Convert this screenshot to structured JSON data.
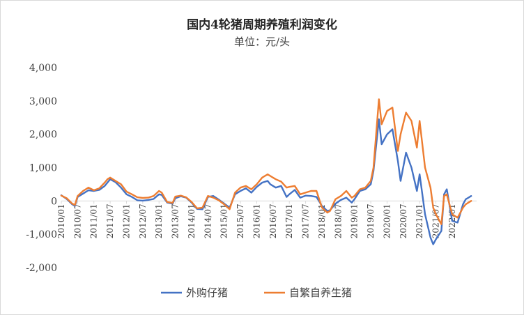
{
  "chart_data": {
    "type": "line",
    "title": "国内4轮猪周期养殖利润变化",
    "subtitle": "单位：元/头",
    "xlabel": "",
    "ylabel": "",
    "ylim": [
      -2000,
      4000
    ],
    "yticks": [
      4000,
      3000,
      2000,
      1000,
      0,
      -1000,
      -2000
    ],
    "ytick_labels": [
      "4,000",
      "3,000",
      "2,000",
      "1,000",
      "0",
      "-1,000",
      "-2,000"
    ],
    "xlim": [
      "2010-01",
      "2022-10"
    ],
    "xtick_labels": [
      "2010/01",
      "2010/07",
      "2011/01",
      "2011/07",
      "2012/01",
      "2012/07",
      "2013/01",
      "2013/07",
      "2014/01",
      "2014/07",
      "2015/01",
      "2015/07",
      "2016/01",
      "2016/07",
      "2017/01",
      "2017/07",
      "2018/01",
      "2018/07",
      "2019/01",
      "2019/07",
      "2020/01",
      "2020/07",
      "2021/01",
      "2021/07",
      "2022/01"
    ],
    "grid": false,
    "legend_position": "bottom",
    "series": [
      {
        "name": "外购仔猪",
        "color": "#4472C4",
        "points": [
          [
            "2010-01",
            170
          ],
          [
            "2010-03",
            60
          ],
          [
            "2010-05",
            -100
          ],
          [
            "2010-06",
            -150
          ],
          [
            "2010-07",
            120
          ],
          [
            "2010-09",
            220
          ],
          [
            "2010-11",
            320
          ],
          [
            "2011-01",
            300
          ],
          [
            "2011-03",
            330
          ],
          [
            "2011-05",
            450
          ],
          [
            "2011-06",
            550
          ],
          [
            "2011-07",
            650
          ],
          [
            "2011-09",
            560
          ],
          [
            "2011-11",
            400
          ],
          [
            "2012-01",
            200
          ],
          [
            "2012-03",
            120
          ],
          [
            "2012-05",
            20
          ],
          [
            "2012-07",
            10
          ],
          [
            "2012-09",
            30
          ],
          [
            "2012-11",
            60
          ],
          [
            "2013-01",
            200
          ],
          [
            "2013-02",
            180
          ],
          [
            "2013-04",
            -50
          ],
          [
            "2013-06",
            -80
          ],
          [
            "2013-07",
            80
          ],
          [
            "2013-09",
            140
          ],
          [
            "2013-11",
            100
          ],
          [
            "2014-01",
            -50
          ],
          [
            "2014-03",
            -240
          ],
          [
            "2014-05",
            -250
          ],
          [
            "2014-07",
            120
          ],
          [
            "2014-09",
            150
          ],
          [
            "2014-11",
            40
          ],
          [
            "2015-01",
            -80
          ],
          [
            "2015-03",
            -200
          ],
          [
            "2015-05",
            200
          ],
          [
            "2015-07",
            300
          ],
          [
            "2015-09",
            380
          ],
          [
            "2015-11",
            250
          ],
          [
            "2016-01",
            420
          ],
          [
            "2016-03",
            550
          ],
          [
            "2016-05",
            600
          ],
          [
            "2016-06",
            500
          ],
          [
            "2016-08",
            400
          ],
          [
            "2016-10",
            450
          ],
          [
            "2016-12",
            120
          ],
          [
            "2017-01",
            200
          ],
          [
            "2017-03",
            330
          ],
          [
            "2017-05",
            100
          ],
          [
            "2017-07",
            160
          ],
          [
            "2017-09",
            150
          ],
          [
            "2017-11",
            120
          ],
          [
            "2018-01",
            -150
          ],
          [
            "2018-03",
            -300
          ],
          [
            "2018-04",
            -280
          ],
          [
            "2018-06",
            -80
          ],
          [
            "2018-08",
            30
          ],
          [
            "2018-10",
            100
          ],
          [
            "2018-12",
            -50
          ],
          [
            "2019-01",
            50
          ],
          [
            "2019-03",
            300
          ],
          [
            "2019-05",
            350
          ],
          [
            "2019-07",
            500
          ],
          [
            "2019-08",
            900
          ],
          [
            "2019-10",
            2450
          ],
          [
            "2019-11",
            1700
          ],
          [
            "2020-01",
            2000
          ],
          [
            "2020-03",
            2150
          ],
          [
            "2020-05",
            1200
          ],
          [
            "2020-06",
            600
          ],
          [
            "2020-08",
            1450
          ],
          [
            "2020-10",
            1000
          ],
          [
            "2020-12",
            300
          ],
          [
            "2021-01",
            800
          ],
          [
            "2021-03",
            -400
          ],
          [
            "2021-05",
            -1100
          ],
          [
            "2021-06",
            -1300
          ],
          [
            "2021-07",
            -1150
          ],
          [
            "2021-09",
            -900
          ],
          [
            "2021-10",
            200
          ],
          [
            "2021-11",
            350
          ],
          [
            "2022-01",
            -600
          ],
          [
            "2022-03",
            -650
          ],
          [
            "2022-05",
            -100
          ],
          [
            "2022-06",
            50
          ],
          [
            "2022-07",
            100
          ],
          [
            "2022-08",
            150
          ]
        ]
      },
      {
        "name": "自繁自养生猪",
        "color": "#ED7D31",
        "points": [
          [
            "2010-01",
            160
          ],
          [
            "2010-03",
            80
          ],
          [
            "2010-05",
            -80
          ],
          [
            "2010-06",
            -120
          ],
          [
            "2010-07",
            150
          ],
          [
            "2010-09",
            300
          ],
          [
            "2010-11",
            400
          ],
          [
            "2011-01",
            320
          ],
          [
            "2011-03",
            380
          ],
          [
            "2011-05",
            550
          ],
          [
            "2011-06",
            650
          ],
          [
            "2011-07",
            700
          ],
          [
            "2011-09",
            600
          ],
          [
            "2011-11",
            500
          ],
          [
            "2012-01",
            280
          ],
          [
            "2012-03",
            200
          ],
          [
            "2012-05",
            110
          ],
          [
            "2012-07",
            90
          ],
          [
            "2012-09",
            100
          ],
          [
            "2012-11",
            150
          ],
          [
            "2013-01",
            300
          ],
          [
            "2013-02",
            250
          ],
          [
            "2013-04",
            -30
          ],
          [
            "2013-06",
            -60
          ],
          [
            "2013-07",
            130
          ],
          [
            "2013-09",
            160
          ],
          [
            "2013-11",
            110
          ],
          [
            "2014-01",
            -30
          ],
          [
            "2014-03",
            -220
          ],
          [
            "2014-05",
            -200
          ],
          [
            "2014-07",
            150
          ],
          [
            "2014-09",
            100
          ],
          [
            "2014-11",
            20
          ],
          [
            "2015-01",
            -100
          ],
          [
            "2015-03",
            -250
          ],
          [
            "2015-05",
            250
          ],
          [
            "2015-07",
            400
          ],
          [
            "2015-09",
            450
          ],
          [
            "2015-11",
            350
          ],
          [
            "2016-01",
            500
          ],
          [
            "2016-03",
            700
          ],
          [
            "2016-05",
            800
          ],
          [
            "2016-06",
            750
          ],
          [
            "2016-08",
            650
          ],
          [
            "2016-10",
            580
          ],
          [
            "2016-12",
            400
          ],
          [
            "2017-01",
            420
          ],
          [
            "2017-03",
            450
          ],
          [
            "2017-05",
            200
          ],
          [
            "2017-07",
            250
          ],
          [
            "2017-09",
            300
          ],
          [
            "2017-11",
            300
          ],
          [
            "2018-01",
            -200
          ],
          [
            "2018-03",
            -350
          ],
          [
            "2018-04",
            -300
          ],
          [
            "2018-06",
            50
          ],
          [
            "2018-08",
            150
          ],
          [
            "2018-10",
            300
          ],
          [
            "2018-12",
            100
          ],
          [
            "2019-01",
            150
          ],
          [
            "2019-03",
            350
          ],
          [
            "2019-05",
            400
          ],
          [
            "2019-07",
            600
          ],
          [
            "2019-08",
            1000
          ],
          [
            "2019-10",
            3050
          ],
          [
            "2019-11",
            2300
          ],
          [
            "2020-01",
            2700
          ],
          [
            "2020-03",
            2800
          ],
          [
            "2020-05",
            1500
          ],
          [
            "2020-06",
            2000
          ],
          [
            "2020-08",
            2650
          ],
          [
            "2020-10",
            2400
          ],
          [
            "2020-12",
            1600
          ],
          [
            "2021-01",
            2400
          ],
          [
            "2021-03",
            1000
          ],
          [
            "2021-05",
            400
          ],
          [
            "2021-06",
            -200
          ],
          [
            "2021-07",
            -400
          ],
          [
            "2021-09",
            -700
          ],
          [
            "2021-10",
            150
          ],
          [
            "2021-11",
            200
          ],
          [
            "2022-01",
            -400
          ],
          [
            "2022-03",
            -500
          ],
          [
            "2022-05",
            -200
          ],
          [
            "2022-06",
            -100
          ],
          [
            "2022-07",
            -50
          ],
          [
            "2022-08",
            0
          ]
        ]
      }
    ]
  }
}
